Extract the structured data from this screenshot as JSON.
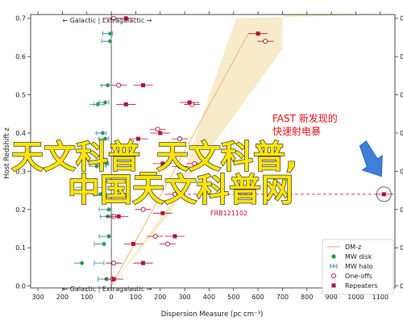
{
  "chart_data": {
    "type": "scatter",
    "xlabel": "Dispersion Measure (pc cm⁻³)",
    "ylabel": "Host Redshift z",
    "xlim": [
      -330,
      1160
    ],
    "ylim": [
      -0.005,
      0.71
    ],
    "xticks": [
      -300,
      -200,
      -100,
      0,
      100,
      200,
      300,
      400,
      500,
      600,
      700,
      800,
      900,
      1000,
      1100
    ],
    "xtick_labels": [
      "300",
      "200",
      "100",
      "0",
      "100",
      "200",
      "300",
      "400",
      "500",
      "600",
      "700",
      "800",
      "900",
      "1000",
      "1100"
    ],
    "yticks": [
      0.0,
      0.1,
      0.2,
      0.3,
      0.4,
      0.5,
      0.6,
      0.7
    ],
    "ytick_labels": [
      "0.0",
      "0.1",
      "0.2",
      "0.3",
      "0.4",
      "0.5",
      "0.6",
      "0.7"
    ],
    "panel_label_top": "← Galactic | Extragalactic →",
    "panel_label_bottom": "← Galactic | Extragalactic →",
    "dm_z_band": {
      "lower": [
        [
          0,
          0.0
        ],
        [
          700,
          0.62
        ]
      ],
      "upper": [
        [
          0,
          0.0
        ],
        [
          250,
          0.2
        ],
        [
          380,
          0.46
        ],
        [
          510,
          0.7
        ]
      ],
      "median": [
        [
          0,
          0.0
        ],
        [
          560,
          0.66
        ]
      ]
    },
    "series": [
      {
        "name": "MW disk",
        "marker": "green-dot",
        "points": [
          {
            "x": -5,
            "z": 0.66
          },
          {
            "x": -5,
            "z": 0.64
          },
          {
            "x": -15,
            "z": 0.525
          },
          {
            "x": -25,
            "z": 0.48
          },
          {
            "x": -55,
            "z": 0.475
          },
          {
            "x": -35,
            "z": 0.4
          },
          {
            "x": -25,
            "z": 0.385
          },
          {
            "x": -20,
            "z": 0.32
          },
          {
            "x": -60,
            "z": 0.313
          },
          {
            "x": -115,
            "z": 0.258
          },
          {
            "x": -45,
            "z": 0.24
          },
          {
            "x": -10,
            "z": 0.2
          },
          {
            "x": -15,
            "z": 0.182
          },
          {
            "x": -10,
            "z": 0.13
          },
          {
            "x": -30,
            "z": 0.11
          },
          {
            "x": -120,
            "z": 0.06
          },
          {
            "x": -20,
            "z": 0.018
          }
        ]
      },
      {
        "name": "MW halo",
        "marker": "blue-bar",
        "points": [
          {
            "x": -15,
            "z": 0.66
          },
          {
            "x": -20,
            "z": 0.64
          },
          {
            "x": -20,
            "z": 0.525
          },
          {
            "x": -30,
            "z": 0.48
          },
          {
            "x": -50,
            "z": 0.475
          },
          {
            "x": -40,
            "z": 0.4
          },
          {
            "x": -30,
            "z": 0.385
          },
          {
            "x": -30,
            "z": 0.32
          },
          {
            "x": -40,
            "z": 0.313
          },
          {
            "x": -50,
            "z": 0.258
          },
          {
            "x": -50,
            "z": 0.24
          },
          {
            "x": -30,
            "z": 0.2
          },
          {
            "x": -25,
            "z": 0.182
          },
          {
            "x": -30,
            "z": 0.13
          },
          {
            "x": -50,
            "z": 0.11
          },
          {
            "x": -50,
            "z": 0.06
          },
          {
            "x": -35,
            "z": 0.018
          }
        ]
      },
      {
        "name": "One-offs",
        "marker": "open-circle",
        "points": [
          {
            "x": 10,
            "z": 0.7
          },
          {
            "x": 630,
            "z": 0.64
          },
          {
            "x": 30,
            "z": 0.525
          },
          {
            "x": 330,
            "z": 0.475
          },
          {
            "x": 190,
            "z": 0.41
          },
          {
            "x": 280,
            "z": 0.385
          },
          {
            "x": 340,
            "z": 0.32
          },
          {
            "x": 280,
            "z": 0.313
          },
          {
            "x": 20,
            "z": 0.26
          },
          {
            "x": 260,
            "z": 0.24
          },
          {
            "x": 130,
            "z": 0.2
          },
          {
            "x": 10,
            "z": 0.182
          },
          {
            "x": 180,
            "z": 0.13
          },
          {
            "x": 230,
            "z": 0.11
          },
          {
            "x": 10,
            "z": 0.06
          },
          {
            "x": 5,
            "z": 0.018
          }
        ]
      },
      {
        "name": "Repeaters",
        "marker": "red-square",
        "points": [
          {
            "x": 60,
            "z": 0.7
          },
          {
            "x": 600,
            "z": 0.66
          },
          {
            "x": 130,
            "z": 0.525
          },
          {
            "x": 320,
            "z": 0.48
          },
          {
            "x": 60,
            "z": 0.475
          },
          {
            "x": 200,
            "z": 0.4
          },
          {
            "x": 110,
            "z": 0.385
          },
          {
            "x": 210,
            "z": 0.32
          },
          {
            "x": 1115,
            "z": 0.24
          },
          {
            "x": 210,
            "z": 0.1905
          },
          {
            "x": 30,
            "z": 0.182
          },
          {
            "x": 260,
            "z": 0.13
          },
          {
            "x": 90,
            "z": 0.11
          },
          {
            "x": 130,
            "z": 0.06
          },
          {
            "x": 10,
            "z": 0.018
          }
        ]
      }
    ],
    "annotations": {
      "frb121102": {
        "label": "FRB121102",
        "x": 210,
        "z": 0.1905
      },
      "dashed_line": {
        "x_start": 220,
        "x_end": 1100,
        "z": 0.24
      },
      "fast_source": {
        "x": 1115,
        "z": 0.24
      },
      "fast_label_line1": "FAST 新发现的",
      "fast_label_line2": "快速射电暴",
      "watermark_line1": "天文科普_天文科普,",
      "watermark_line2": "中国天文科普网"
    },
    "legend": {
      "position": "bottom-right",
      "entries": [
        "DM-z",
        "MW disk",
        "MW halo",
        "One-offs",
        "Repeaters"
      ]
    }
  },
  "colors": {
    "band": "#f7e9c4",
    "median": "#e2b26c",
    "green": "#1b9e3e",
    "blue": "#4a88bb",
    "red": "#b0133a",
    "pink": "#d63a8a",
    "arrow": "#3c7fd6"
  }
}
